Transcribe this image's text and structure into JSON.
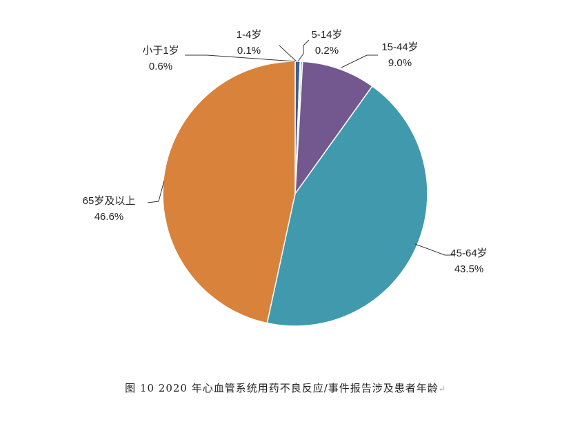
{
  "chart_data": {
    "type": "pie",
    "title": "",
    "slices": [
      {
        "label": "小于1岁",
        "value": 0.6,
        "display": "0.6%",
        "color": "#3e5d99"
      },
      {
        "label": "1-4岁",
        "value": 0.1,
        "display": "0.1%",
        "color": "#9b3a36"
      },
      {
        "label": "5-14岁",
        "value": 0.2,
        "display": "0.2%",
        "color": "#8aa84a"
      },
      {
        "label": "15-44岁",
        "value": 9.0,
        "display": "9.0%",
        "color": "#73578f"
      },
      {
        "label": "45-64岁",
        "value": 43.5,
        "display": "43.5%",
        "color": "#4199ae"
      },
      {
        "label": "65岁及以上",
        "value": 46.6,
        "display": "46.6%",
        "color": "#d9823b"
      }
    ]
  },
  "caption": {
    "text": "图 10  2020 年心血管系统用药不良反应/事件报告涉及患者年龄",
    "mark": "↵"
  }
}
